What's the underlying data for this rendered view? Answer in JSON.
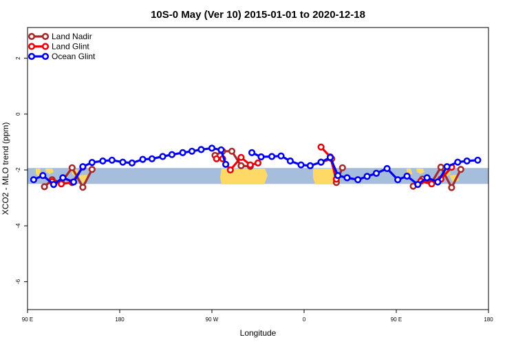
{
  "chart_data": {
    "type": "line",
    "title": "10S-0 May (Ver 10)   2015-01-01 to 2020-12-18",
    "xlabel": "Longitude",
    "ylabel": "XCO2 - MLO trend (ppm)",
    "xlim": [
      90,
      390
    ],
    "ylim": [
      -7,
      3.1
    ],
    "x_ticks": [
      {
        "value": 90,
        "label": "90 E"
      },
      {
        "value": 150,
        "label": "180"
      },
      {
        "value": 210,
        "label": "90 W"
      },
      {
        "value": 270,
        "label": "0"
      },
      {
        "value": 330,
        "label": "90 E"
      },
      {
        "value": 390,
        "label": "180"
      }
    ],
    "y_ticks": [
      {
        "value": 2,
        "label": "2"
      },
      {
        "value": 0,
        "label": "0"
      },
      {
        "value": -2,
        "label": "-2"
      },
      {
        "value": -4,
        "label": "-4"
      },
      {
        "value": -6,
        "label": "-6"
      }
    ],
    "band": {
      "y_min": -2.5,
      "y_max": -1.93,
      "color": "#a6bddb"
    },
    "land_color": "#ffd966",
    "grid": false,
    "legend_position": "top-left",
    "series": [
      {
        "name": "Land Nadir",
        "color": "#a52a2a",
        "segments": [
          [
            [
              101,
              -2.6
            ],
            [
              106,
              -2.35
            ],
            [
              112,
              -2.45
            ],
            [
              119,
              -1.92
            ],
            [
              126,
              -2.62
            ],
            [
              132,
              -1.98
            ]
          ],
          [
            [
              212,
              -1.48
            ],
            [
              217,
              -1.33
            ],
            [
              223,
              -1.33
            ],
            [
              229,
              -1.85
            ],
            [
              235,
              -1.87
            ]
          ],
          [
            [
              281,
              -1.72
            ],
            [
              288,
              -1.6
            ],
            [
              291,
              -2.45
            ],
            [
              295,
              -1.92
            ]
          ],
          [
            [
              341,
              -2.58
            ],
            [
              347,
              -2.33
            ],
            [
              353,
              -2.45
            ],
            [
              359,
              -1.9
            ],
            [
              366,
              -2.63
            ],
            [
              372,
              -1.98
            ]
          ]
        ]
      },
      {
        "name": "Land Glint",
        "color": "#e8000b",
        "segments": [
          [
            [
              106,
              -2.42
            ],
            [
              112,
              -2.5
            ],
            [
              119,
              -2.45
            ],
            [
              126,
              -1.9
            ]
          ],
          [
            [
              213,
              -1.6
            ],
            [
              217,
              -1.6
            ],
            [
              222,
              -2.0
            ],
            [
              229,
              -1.55
            ],
            [
              235,
              -1.82
            ],
            [
              240,
              -1.75
            ]
          ],
          [
            [
              281,
              -1.18
            ],
            [
              287,
              -1.53
            ],
            [
              291,
              -2.33
            ]
          ],
          [
            [
              346,
              -2.4
            ],
            [
              353,
              -2.5
            ],
            [
              359,
              -2.33
            ],
            [
              366,
              -1.9
            ]
          ]
        ]
      },
      {
        "name": "Ocean Glint",
        "color": "#0000ee",
        "segments": [
          [
            [
              94,
              -2.35
            ],
            [
              100,
              -2.2
            ],
            [
              107,
              -2.52
            ],
            [
              113,
              -2.28
            ],
            [
              120,
              -2.43
            ],
            [
              126,
              -1.88
            ],
            [
              132,
              -1.73
            ],
            [
              139,
              -1.68
            ],
            [
              145,
              -1.65
            ],
            [
              152,
              -1.72
            ],
            [
              158,
              -1.75
            ],
            [
              165,
              -1.62
            ],
            [
              171,
              -1.6
            ],
            [
              178,
              -1.52
            ],
            [
              184,
              -1.45
            ],
            [
              191,
              -1.38
            ],
            [
              197,
              -1.33
            ],
            [
              203,
              -1.27
            ],
            [
              210,
              -1.22
            ],
            [
              216,
              -1.28
            ],
            [
              219,
              -1.8
            ]
          ],
          [
            [
              236,
              -1.38
            ],
            [
              242,
              -1.53
            ],
            [
              249,
              -1.52
            ],
            [
              255,
              -1.5
            ],
            [
              261,
              -1.68
            ],
            [
              268,
              -1.82
            ],
            [
              274,
              -1.85
            ],
            [
              281,
              -1.72
            ],
            [
              287,
              -1.55
            ],
            [
              292,
              -2.2
            ],
            [
              298,
              -2.28
            ],
            [
              305,
              -2.35
            ],
            [
              311,
              -2.23
            ],
            [
              317,
              -2.12
            ],
            [
              324,
              -1.95
            ],
            [
              331,
              -2.35
            ],
            [
              337,
              -2.22
            ],
            [
              344,
              -2.52
            ],
            [
              350,
              -2.28
            ],
            [
              357,
              -2.43
            ],
            [
              363,
              -1.88
            ],
            [
              370,
              -1.72
            ],
            [
              376,
              -1.68
            ],
            [
              383,
              -1.65
            ]
          ]
        ]
      }
    ]
  }
}
